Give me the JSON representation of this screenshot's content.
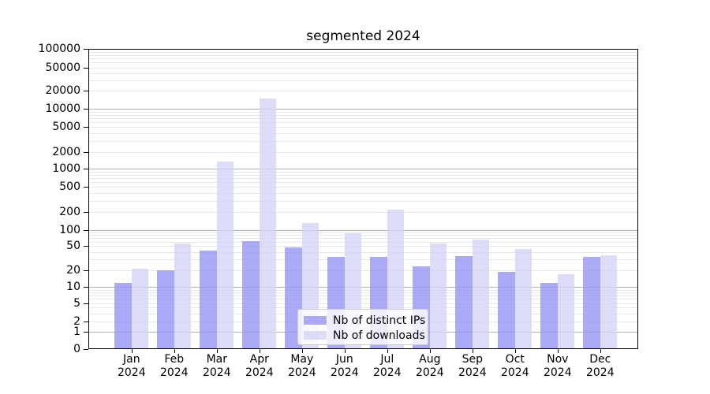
{
  "chart_data": {
    "type": "bar",
    "title": "segmented 2024",
    "y_scale": "symlog",
    "ylim": [
      0,
      100000
    ],
    "y_ticks": [
      0,
      1,
      2,
      5,
      10,
      20,
      50,
      100,
      200,
      500,
      1000,
      2000,
      5000,
      10000,
      20000,
      50000,
      100000
    ],
    "grid": true,
    "legend_position": "lower center",
    "categories": [
      "Jan 2024",
      "Feb 2024",
      "Mar 2024",
      "Apr 2024",
      "May 2024",
      "Jun 2024",
      "Jul 2024",
      "Aug 2024",
      "Sep 2024",
      "Oct 2024",
      "Nov 2024",
      "Dec 2024"
    ],
    "x_tick_line1": [
      "Jan",
      "Feb",
      "Mar",
      "Apr",
      "May",
      "Jun",
      "Jul",
      "Aug",
      "Sep",
      "Oct",
      "Nov",
      "Dec"
    ],
    "x_tick_line2": [
      "2024",
      "2024",
      "2024",
      "2024",
      "2024",
      "2024",
      "2024",
      "2024",
      "2024",
      "2024",
      "2024",
      "2024"
    ],
    "series": [
      {
        "name": "Nb of distinct IPs",
        "key": "distinct-ips",
        "color": "#9595f5",
        "values": [
          12,
          20,
          42,
          61,
          47,
          33,
          33,
          23,
          34,
          19,
          12,
          33
        ]
      },
      {
        "name": "Nb of downloads",
        "key": "downloads",
        "color": "#d4d4f8",
        "values": [
          21,
          55,
          1350,
          15000,
          130,
          85,
          220,
          55,
          65,
          44,
          17,
          35
        ]
      }
    ],
    "colors": {
      "bar_alpha": 0.8,
      "major_grid": "#b0b0b0",
      "minor_grid": "#e7e7e7",
      "axis": "#000000",
      "legend_border": "#cccccc"
    }
  }
}
